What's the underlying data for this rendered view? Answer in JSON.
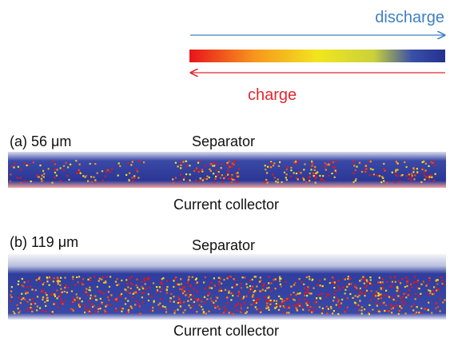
{
  "legend": {
    "discharge": "discharge",
    "charge": "charge"
  },
  "panels": [
    {
      "label": "(a) 56 μm",
      "top": "Separator",
      "bottom": "Current collector"
    },
    {
      "label": "(b) 119 μm",
      "top": "Separator",
      "bottom": "Current collector"
    }
  ]
}
